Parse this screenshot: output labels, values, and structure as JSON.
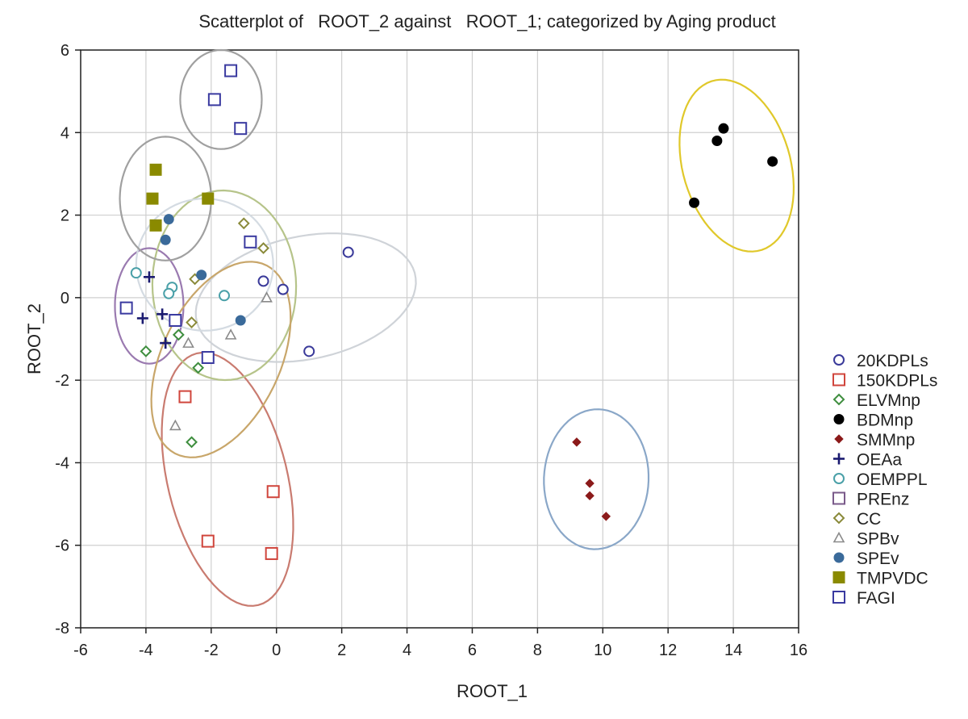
{
  "chart_data": {
    "type": "scatter",
    "title": "Scatterplot of   ROOT_2 against   ROOT_1; categorized by Aging product",
    "xlabel": "ROOT_1",
    "ylabel": "ROOT_2",
    "xlim": [
      -6,
      16
    ],
    "ylim": [
      -8,
      6
    ],
    "xticks": [
      -6,
      -4,
      -2,
      0,
      2,
      4,
      6,
      8,
      10,
      12,
      14,
      16
    ],
    "yticks": [
      -8,
      -6,
      -4,
      -2,
      0,
      2,
      4,
      6
    ],
    "grid": true,
    "legend_position": "right",
    "series": [
      {
        "name": "20KDPLs",
        "marker": "circle-open",
        "color": "#3a3a9a",
        "points": [
          [
            -0.4,
            0.4
          ],
          [
            0.2,
            0.2
          ],
          [
            2.2,
            1.1
          ],
          [
            1.0,
            -1.3
          ]
        ],
        "ellipse": {
          "center": [
            0.9,
            0.0
          ],
          "semi_axes": [
            3.4,
            1.5
          ],
          "angle": 8,
          "color": "#cfd3d8"
        }
      },
      {
        "name": "150KDPLs",
        "marker": "square-open",
        "color": "#d0453c",
        "points": [
          [
            -2.8,
            -2.4
          ],
          [
            -0.1,
            -4.7
          ],
          [
            -2.1,
            -5.9
          ],
          [
            -0.15,
            -6.2
          ]
        ],
        "ellipse": {
          "center": [
            -1.5,
            -4.4
          ],
          "semi_axes": [
            1.8,
            3.2
          ],
          "angle": 20,
          "color": "#c97b70"
        }
      },
      {
        "name": "ELVMnp",
        "marker": "diamond-open",
        "color": "#3e8e3e",
        "points": [
          [
            -4.0,
            -1.3
          ],
          [
            -3.0,
            -0.9
          ],
          [
            -2.4,
            -1.7
          ],
          [
            -2.6,
            -3.5
          ]
        ],
        "ellipse": null
      },
      {
        "name": "BDMnp",
        "marker": "circle-filled",
        "color": "#000000",
        "points": [
          [
            12.8,
            2.3
          ],
          [
            13.5,
            3.8
          ],
          [
            13.7,
            4.1
          ],
          [
            15.2,
            3.3
          ]
        ],
        "ellipse": {
          "center": [
            14.1,
            3.2
          ],
          "semi_axes": [
            1.6,
            2.2
          ],
          "angle": 28,
          "color": "#e0c82a"
        }
      },
      {
        "name": "SMMnp",
        "marker": "diamond-filled",
        "color": "#8b1a1a",
        "points": [
          [
            9.2,
            -3.5
          ],
          [
            9.6,
            -4.5
          ],
          [
            9.6,
            -4.8
          ],
          [
            10.1,
            -5.3
          ]
        ],
        "ellipse": {
          "center": [
            9.8,
            -4.4
          ],
          "semi_axes": [
            1.6,
            1.7
          ],
          "angle": -12,
          "color": "#8aa7c8"
        }
      },
      {
        "name": "OEAa",
        "marker": "plus",
        "color": "#1a1a70",
        "points": [
          [
            -3.9,
            0.5
          ],
          [
            -4.1,
            -0.5
          ],
          [
            -3.5,
            -0.4
          ],
          [
            -3.4,
            -1.1
          ]
        ],
        "ellipse": {
          "center": [
            -3.9,
            -0.2
          ],
          "semi_axes": [
            1.05,
            1.4
          ],
          "angle": 0,
          "color": "#9a7ab0"
        }
      },
      {
        "name": "OEMPPL",
        "marker": "circle-open",
        "color": "#4aa0a8",
        "points": [
          [
            -4.3,
            0.6
          ],
          [
            -3.2,
            0.25
          ],
          [
            -3.3,
            0.1
          ],
          [
            -1.6,
            0.05
          ]
        ],
        "ellipse": null
      },
      {
        "name": "PREnz",
        "marker": "square-open",
        "color": "#7a5a8a",
        "points": [],
        "ellipse": null
      },
      {
        "name": "CC",
        "marker": "diamond-open",
        "color": "#8a8a3a",
        "points": [
          [
            -1.0,
            1.8
          ],
          [
            -0.4,
            1.2
          ],
          [
            -2.5,
            0.45
          ],
          [
            -2.6,
            -0.6
          ]
        ],
        "ellipse": {
          "center": [
            -1.6,
            0.3
          ],
          "semi_axes": [
            2.2,
            2.3
          ],
          "angle": 10,
          "color": "#b6c48a"
        }
      },
      {
        "name": "SPBv",
        "marker": "triangle-open",
        "color": "#8a8a8a",
        "points": [
          [
            -0.3,
            0.0
          ],
          [
            -1.4,
            -0.9
          ],
          [
            -2.7,
            -1.1
          ],
          [
            -3.1,
            -3.1
          ]
        ],
        "ellipse": {
          "center": [
            -1.7,
            -1.5
          ],
          "semi_axes": [
            1.7,
            2.7
          ],
          "angle": -38,
          "color": "#c8a66a"
        }
      },
      {
        "name": "SPEv",
        "marker": "circle-filled",
        "color": "#3a6a9a",
        "points": [
          [
            -3.3,
            1.9
          ],
          [
            -3.4,
            1.4
          ],
          [
            -2.3,
            0.55
          ],
          [
            -1.1,
            -0.55
          ]
        ],
        "ellipse": {
          "center": [
            -2.2,
            0.8
          ],
          "semi_axes": [
            2.1,
            1.6
          ],
          "angle": 0,
          "color": "#d4dbe2"
        }
      },
      {
        "name": "TMPVDC",
        "marker": "square-filled",
        "color": "#8a8a00",
        "points": [
          [
            -3.7,
            3.1
          ],
          [
            -3.8,
            2.4
          ],
          [
            -3.7,
            1.75
          ],
          [
            -2.1,
            2.4
          ]
        ],
        "ellipse": {
          "center": [
            -3.4,
            2.4
          ],
          "semi_axes": [
            1.4,
            1.5
          ],
          "angle": 0,
          "color": "#a0a0a0"
        }
      },
      {
        "name": "FAGI",
        "marker": "square-open",
        "color": "#3a3aa0",
        "points": [
          [
            -1.4,
            5.5
          ],
          [
            -1.9,
            4.8
          ],
          [
            -1.1,
            4.1
          ],
          [
            -0.8,
            1.35
          ],
          [
            -4.6,
            -0.25
          ],
          [
            -3.1,
            -0.55
          ],
          [
            -2.1,
            -1.45
          ]
        ],
        "ellipse": {
          "center": [
            -1.7,
            4.8
          ],
          "semi_axes": [
            1.25,
            1.2
          ],
          "angle": 0,
          "color": "#a0a0a0"
        }
      }
    ]
  }
}
